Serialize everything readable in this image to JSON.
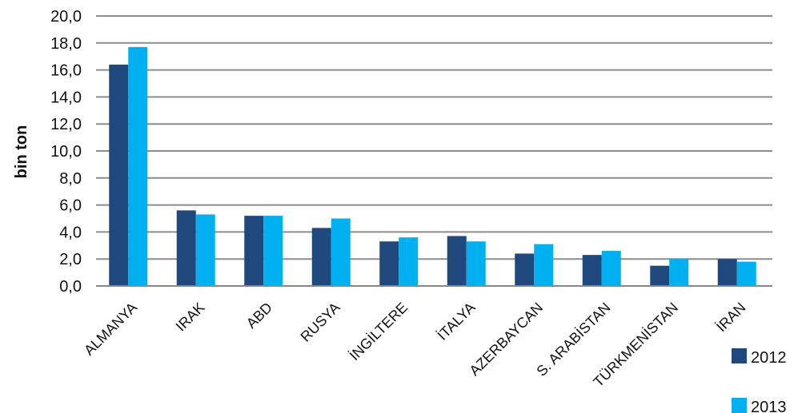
{
  "chart_data": {
    "type": "bar",
    "ylabel": "bin ton",
    "ylim": [
      0,
      20
    ],
    "yticks": [
      "0,0",
      "2,0",
      "4,0",
      "6,0",
      "8,0",
      "10,0",
      "12,0",
      "14,0",
      "16,0",
      "18,0",
      "20,0"
    ],
    "grid": true,
    "legend_position": "bottom-right",
    "categories": [
      "ALMANYA",
      "IRAK",
      "ABD",
      "RUSYA",
      "İNGİLTERE",
      "İTALYA",
      "AZERBAYCAN",
      "S. ARABİSTAN",
      "TÜRKMENİSTAN",
      "İRAN"
    ],
    "series": [
      {
        "name": "2012",
        "color": "#1F497D",
        "values": [
          16.4,
          5.6,
          5.2,
          4.3,
          3.3,
          3.7,
          2.4,
          2.3,
          1.5,
          2.0
        ]
      },
      {
        "name": "2013",
        "color": "#00B0F0",
        "values": [
          17.7,
          5.3,
          5.2,
          5.0,
          3.6,
          3.3,
          3.1,
          2.6,
          2.0,
          1.8
        ]
      }
    ]
  }
}
